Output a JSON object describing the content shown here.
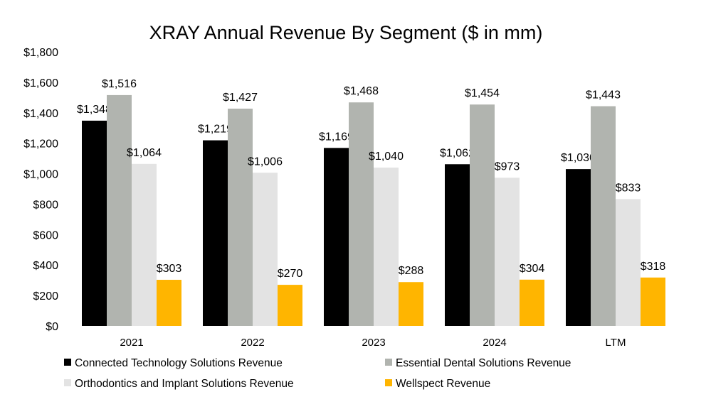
{
  "chart_data": {
    "type": "bar",
    "title": "XRAY Annual Revenue By Segment ($ in mm)",
    "xlabel": "",
    "ylabel": "",
    "ylim": [
      0,
      1800
    ],
    "yticks": [
      0,
      200,
      400,
      600,
      800,
      1000,
      1200,
      1400,
      1600,
      1800
    ],
    "ytick_labels": [
      "$0",
      "$200",
      "$400",
      "$600",
      "$800",
      "$1,000",
      "$1,200",
      "$1,400",
      "$1,600",
      "$1,800"
    ],
    "grid": false,
    "legend_position": "bottom",
    "categories": [
      "2021",
      "2022",
      "2023",
      "2024",
      "LTM"
    ],
    "series": [
      {
        "name": "Connected Technology Solutions Revenue",
        "color": "#000000",
        "values": [
          1348,
          1219,
          1169,
          1062,
          1030
        ],
        "labels": [
          "$1,348",
          "$1,219",
          "$1,169",
          "$1,062",
          "$1,030"
        ]
      },
      {
        "name": "Essential Dental Solutions Revenue",
        "color": "#B1B4AF",
        "values": [
          1516,
          1427,
          1468,
          1454,
          1443
        ],
        "labels": [
          "$1,516",
          "$1,427",
          "$1,468",
          "$1,454",
          "$1,443"
        ]
      },
      {
        "name": "Orthodontics and Implant Solutions Revenue",
        "color": "#E3E3E3",
        "values": [
          1064,
          1006,
          1040,
          973,
          833
        ],
        "labels": [
          "$1,064",
          "$1,006",
          "$1,040",
          "$973",
          "$833"
        ]
      },
      {
        "name": "Wellspect Revenue",
        "color": "#FFB500",
        "values": [
          303,
          270,
          288,
          304,
          318
        ],
        "labels": [
          "$303",
          "$270",
          "$288",
          "$304",
          "$318"
        ]
      }
    ]
  }
}
